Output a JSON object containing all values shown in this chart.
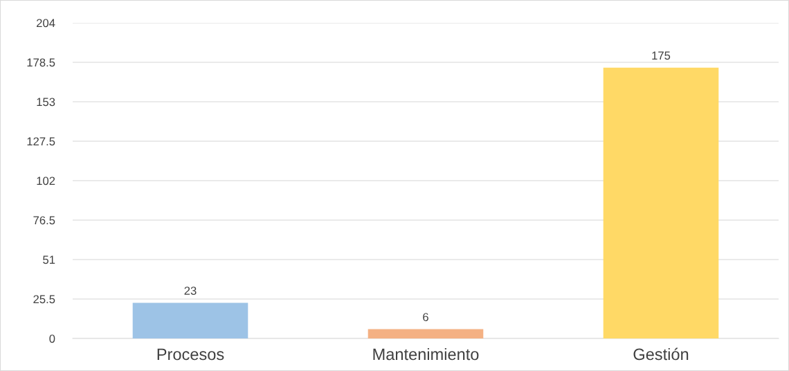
{
  "chart_data": {
    "type": "bar",
    "categories": [
      "Procesos",
      "Mantenimiento",
      "Gestión"
    ],
    "values": [
      23,
      6,
      175
    ],
    "colors": [
      "#9dc3e6",
      "#f4b183",
      "#ffd966"
    ],
    "ylim": [
      0,
      204
    ],
    "yticks": [
      0,
      25.5,
      51,
      76.5,
      102,
      127.5,
      153,
      178.5,
      204
    ],
    "grid": "y",
    "data_labels": true
  }
}
